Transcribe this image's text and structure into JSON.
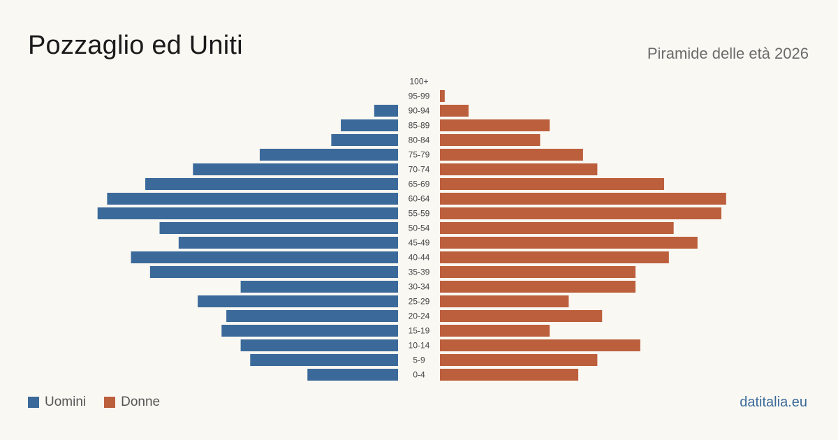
{
  "header": {
    "title": "Pozzaglio ed Uniti",
    "subtitle": "Piramide delle età 2026"
  },
  "footer": {
    "source": "datitalia.eu"
  },
  "colors": {
    "male": "#3b6a9a",
    "female": "#bc5f3c"
  },
  "chart_data": {
    "type": "bar",
    "orientation": "horizontal-mirrored",
    "categories": [
      "100+",
      "95-99",
      "90-94",
      "85-89",
      "80-84",
      "75-79",
      "70-74",
      "65-69",
      "60-64",
      "55-59",
      "50-54",
      "45-49",
      "40-44",
      "35-39",
      "30-34",
      "25-29",
      "20-24",
      "15-19",
      "10-14",
      "5-9",
      "0-4"
    ],
    "series": [
      {
        "name": "Uomini",
        "values": [
          0,
          0,
          5,
          12,
          14,
          29,
          43,
          53,
          61,
          63,
          50,
          46,
          56,
          52,
          33,
          42,
          36,
          37,
          33,
          31,
          19
        ]
      },
      {
        "name": "Donne",
        "values": [
          0,
          1,
          6,
          23,
          21,
          30,
          33,
          47,
          60,
          59,
          49,
          54,
          48,
          41,
          41,
          27,
          34,
          23,
          42,
          33,
          29
        ]
      }
    ],
    "legend_position": "bottom-left",
    "grid": false
  }
}
